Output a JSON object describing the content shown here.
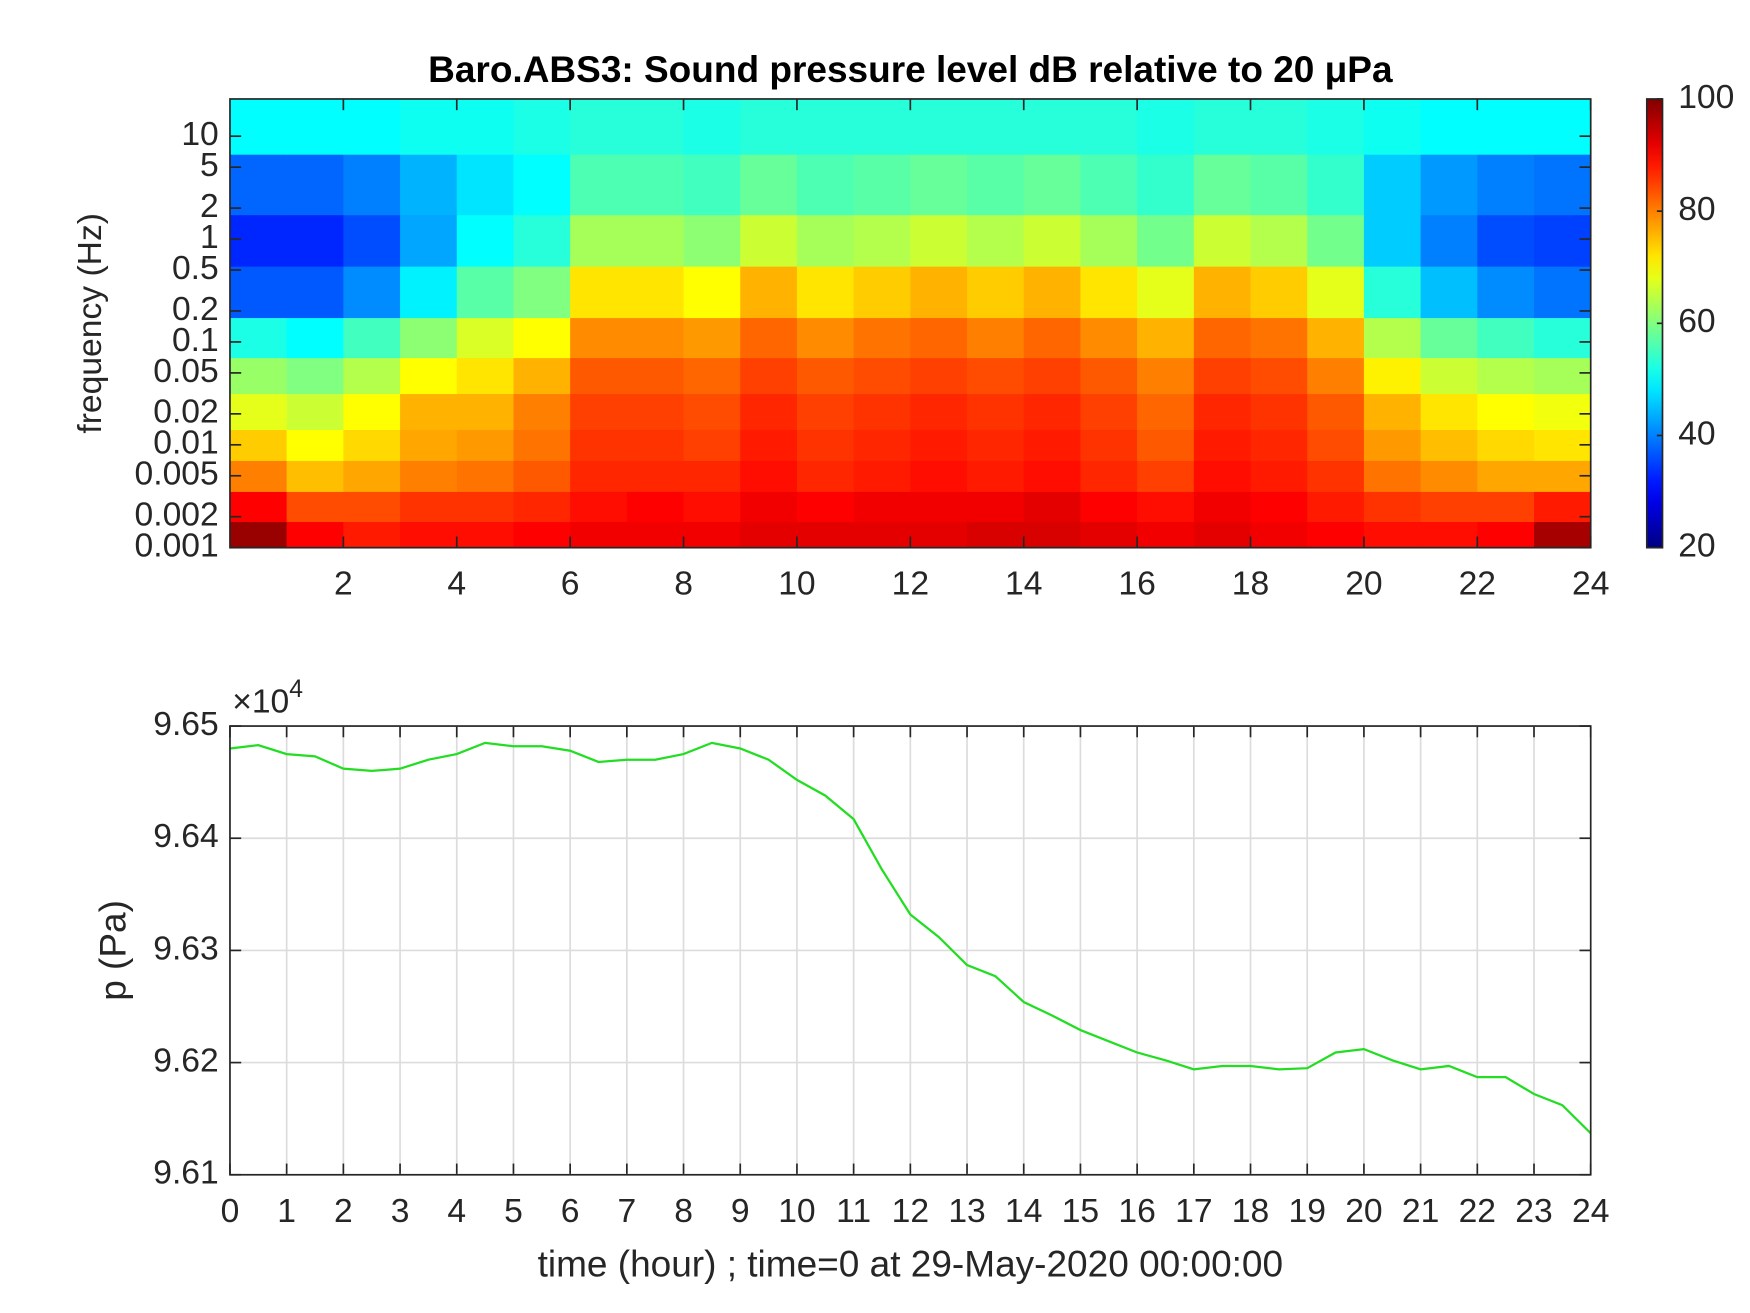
{
  "chart_data": [
    {
      "type": "heatmap",
      "title": "Baro.ABS3: Sound pressure level dB relative to 20 μPa",
      "ylabel": "frequency (Hz)",
      "x": [
        0.5,
        1.5,
        2.5,
        3.5,
        4.5,
        5.5,
        6.5,
        7.5,
        8.5,
        9.5,
        10.5,
        11.5,
        12.5,
        13.5,
        14.5,
        15.5,
        16.5,
        17.5,
        18.5,
        19.5,
        20.5,
        21.5,
        22.5,
        23.5
      ],
      "y": [
        0.0013,
        0.0025,
        0.005,
        0.01,
        0.02,
        0.05,
        0.1,
        0.3,
        1,
        3,
        15
      ],
      "z": [
        [
          98,
          90,
          88,
          89,
          89,
          90,
          91,
          91,
          91,
          92,
          92,
          92,
          92,
          93,
          93,
          92,
          91,
          92,
          91,
          90,
          89,
          89,
          90,
          97
        ],
        [
          90,
          84,
          84,
          86,
          86,
          87,
          89,
          90,
          89,
          91,
          90,
          91,
          91,
          91,
          92,
          90,
          89,
          91,
          90,
          88,
          86,
          85,
          85,
          88
        ],
        [
          80,
          75,
          77,
          80,
          81,
          83,
          87,
          87,
          87,
          89,
          87,
          88,
          89,
          88,
          89,
          87,
          85,
          89,
          88,
          86,
          81,
          79,
          77,
          77
        ],
        [
          74,
          70,
          73,
          77,
          78,
          81,
          86,
          86,
          85,
          88,
          86,
          87,
          88,
          87,
          88,
          86,
          83,
          88,
          87,
          84,
          78,
          75,
          73,
          72
        ],
        [
          68,
          66,
          70,
          76,
          76,
          80,
          85,
          85,
          84,
          87,
          85,
          86,
          87,
          86,
          87,
          85,
          82,
          87,
          86,
          83,
          76,
          72,
          70,
          69
        ],
        [
          62,
          60,
          64,
          70,
          72,
          76,
          83,
          83,
          82,
          85,
          83,
          84,
          85,
          84,
          85,
          83,
          80,
          85,
          84,
          80,
          71,
          66,
          64,
          63
        ],
        [
          52,
          50,
          55,
          61,
          67,
          70,
          79,
          79,
          78,
          82,
          79,
          81,
          82,
          80,
          82,
          79,
          76,
          82,
          81,
          76,
          64,
          58,
          55,
          53
        ],
        [
          37,
          37,
          41,
          49,
          57,
          60,
          72,
          72,
          70,
          76,
          72,
          74,
          76,
          74,
          76,
          72,
          68,
          76,
          74,
          68,
          53,
          45,
          41,
          39
        ],
        [
          33,
          33,
          36,
          43,
          50,
          53,
          63,
          63,
          61,
          66,
          63,
          64,
          66,
          64,
          66,
          63,
          59,
          66,
          64,
          59,
          46,
          40,
          36,
          35
        ],
        [
          38,
          38,
          40,
          44,
          48,
          50,
          56,
          56,
          55,
          58,
          56,
          57,
          58,
          57,
          58,
          56,
          54,
          58,
          57,
          54,
          46,
          42,
          40,
          39
        ],
        [
          50,
          50,
          50,
          51,
          51,
          52,
          53,
          53,
          52,
          53,
          53,
          53,
          53,
          53,
          53,
          53,
          52,
          53,
          53,
          52,
          51,
          50,
          50,
          50
        ]
      ],
      "xlim": [
        0,
        24
      ],
      "xticks": [
        2,
        4,
        6,
        8,
        10,
        12,
        14,
        16,
        18,
        20,
        22,
        24
      ],
      "ylim": [
        0.001,
        23
      ],
      "ylog": true,
      "yticks": [
        0.001,
        0.002,
        0.005,
        0.01,
        0.02,
        0.05,
        0.1,
        0.2,
        0.5,
        1,
        2,
        5,
        10
      ],
      "colormap": "jet",
      "clim": [
        20,
        100
      ],
      "cticks": [
        20,
        40,
        60,
        80,
        100
      ]
    },
    {
      "type": "line",
      "xlabel": "time (hour) ; time=0 at 29-May-2020 00:00:00",
      "ylabel": "p (Pa)",
      "y_multiplier": {
        "base": "×10",
        "exponent": "4"
      },
      "color": "#22dd22",
      "x": [
        0,
        0.5,
        1,
        1.5,
        2,
        2.5,
        3,
        3.5,
        4,
        4.5,
        5,
        5.5,
        6,
        6.5,
        7,
        7.5,
        8,
        8.5,
        9,
        9.5,
        10,
        10.5,
        11,
        11.5,
        12,
        12.5,
        13,
        13.5,
        14,
        14.5,
        15,
        15.5,
        16,
        16.5,
        17,
        17.5,
        18,
        18.5,
        19,
        19.5,
        20,
        20.5,
        21,
        21.5,
        22,
        22.5,
        23,
        23.5,
        24
      ],
      "values": [
        9.648,
        9.6483,
        9.6475,
        9.6473,
        9.6462,
        9.646,
        9.6462,
        9.647,
        9.6475,
        9.6485,
        9.6482,
        9.6482,
        9.6478,
        9.6468,
        9.647,
        9.647,
        9.6475,
        9.6485,
        9.648,
        9.647,
        9.6452,
        9.6438,
        9.6417,
        9.6372,
        9.6332,
        9.6312,
        9.6287,
        9.6277,
        9.6254,
        9.6242,
        9.6229,
        9.6219,
        9.6209,
        9.6202,
        9.6194,
        9.6197,
        9.6197,
        9.6194,
        9.6195,
        9.6209,
        9.6212,
        9.6202,
        9.6194,
        9.6197,
        9.6187,
        9.6187,
        9.6172,
        9.6162,
        9.6137
      ],
      "xlim": [
        0,
        24
      ],
      "xticks": [
        0,
        1,
        2,
        3,
        4,
        5,
        6,
        7,
        8,
        9,
        10,
        11,
        12,
        13,
        14,
        15,
        16,
        17,
        18,
        19,
        20,
        21,
        22,
        23,
        24
      ],
      "ylim": [
        9.61,
        9.65
      ],
      "yticks": [
        9.61,
        9.62,
        9.63,
        9.64,
        9.65
      ],
      "grid": true
    }
  ]
}
